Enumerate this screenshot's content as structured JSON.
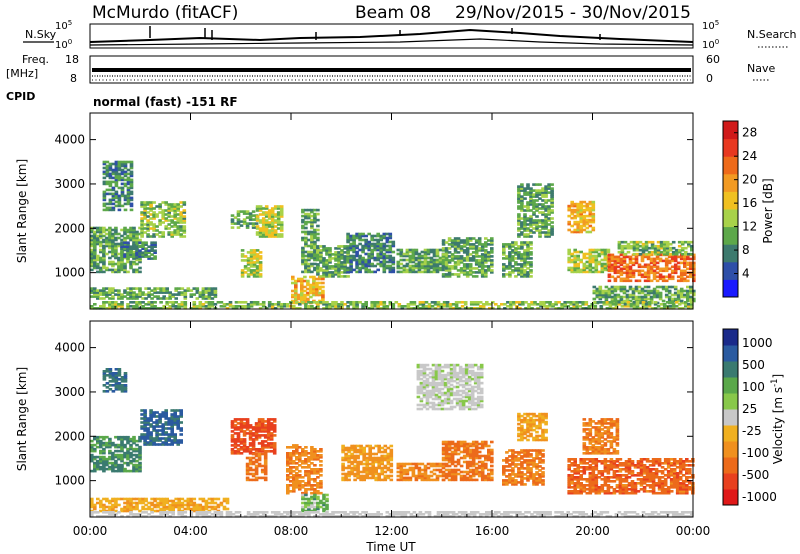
{
  "header": {
    "title": "McMurdo (fitACF)",
    "beam": "Beam 08",
    "dates": "29/Nov/2015 - 30/Nov/2015",
    "mode": "normal (fast) -151 RF"
  },
  "strips": {
    "nsky_label": "N.Sky",
    "nsky_top": "10^5",
    "nsky_bottom": "10^0",
    "nsearch_label": "N.Search",
    "freq_label_1": "Freq.",
    "freq_label_2": "[MHz]",
    "freq_top": "18",
    "freq_bottom": "8",
    "nave_label": "Nave",
    "nave_top": "60",
    "nave_bottom": "0",
    "cpid_label": "CPID"
  },
  "colors": {
    "power": [
      "#1a1aff",
      "#2e4fa8",
      "#3d7a6e",
      "#5da84a",
      "#a8d24a",
      "#f0c020",
      "#f29a22",
      "#ee6a1a",
      "#e83820",
      "#d01a1a"
    ],
    "velocity": [
      "#1a2a8a",
      "#2a5aa0",
      "#3a7a70",
      "#5aa84a",
      "#88c84a",
      "#c8c8c8",
      "#f0b020",
      "#f0901e",
      "#ec6a1a",
      "#e8401e",
      "#e01818"
    ]
  },
  "chart_data": [
    {
      "type": "heatmap",
      "title": "Power",
      "xlabel": "Time UT",
      "ylabel": "Slant Range [km]",
      "xlim": [
        "00:00",
        "00:00"
      ],
      "x_ticks": [
        "00:00",
        "04:00",
        "08:00",
        "12:00",
        "16:00",
        "20:00",
        "00:00"
      ],
      "ylim": [
        180,
        4600
      ],
      "y_ticks": [
        "1000",
        "2000",
        "3000",
        "4000"
      ],
      "colorbar": {
        "label": "Power [dB]",
        "ticks": [
          "4",
          "8",
          "12",
          "16",
          "20",
          "24",
          "28"
        ],
        "range": [
          0,
          30
        ]
      },
      "regions": [
        {
          "t0": 0.0,
          "t1": 2.0,
          "r0": 1000,
          "r1": 2000,
          "value": 10
        },
        {
          "t0": 0.5,
          "t1": 1.6,
          "r0": 2400,
          "r1": 3500,
          "value": 8
        },
        {
          "t0": 1.2,
          "t1": 2.6,
          "r0": 1300,
          "r1": 1700,
          "value": 8
        },
        {
          "t0": 2.0,
          "t1": 3.8,
          "r0": 1800,
          "r1": 2600,
          "value": 12
        },
        {
          "t0": 0.0,
          "t1": 5.0,
          "r0": 400,
          "r1": 650,
          "value": 10
        },
        {
          "t0": 5.6,
          "t1": 6.6,
          "r0": 2000,
          "r1": 2400,
          "value": 10
        },
        {
          "t0": 6.6,
          "t1": 7.6,
          "r0": 1800,
          "r1": 2500,
          "value": 14
        },
        {
          "t0": 6.0,
          "t1": 6.8,
          "r0": 900,
          "r1": 1500,
          "value": 14
        },
        {
          "t0": 8.0,
          "t1": 9.2,
          "r0": 300,
          "r1": 900,
          "value": 18
        },
        {
          "t0": 8.4,
          "t1": 9.0,
          "r0": 1000,
          "r1": 2400,
          "value": 10
        },
        {
          "t0": 9.0,
          "t1": 10.2,
          "r0": 900,
          "r1": 1600,
          "value": 10
        },
        {
          "t0": 10.2,
          "t1": 12.0,
          "r0": 1000,
          "r1": 1900,
          "value": 8
        },
        {
          "t0": 12.2,
          "t1": 14.2,
          "r0": 1000,
          "r1": 1500,
          "value": 10
        },
        {
          "t0": 14.0,
          "t1": 16.0,
          "r0": 900,
          "r1": 1800,
          "value": 10
        },
        {
          "t0": 16.4,
          "t1": 17.6,
          "r0": 900,
          "r1": 1700,
          "value": 10
        },
        {
          "t0": 17.0,
          "t1": 18.4,
          "r0": 1800,
          "r1": 3000,
          "value": 10
        },
        {
          "t0": 19.0,
          "t1": 20.0,
          "r0": 1900,
          "r1": 2600,
          "value": 18
        },
        {
          "t0": 19.0,
          "t1": 20.6,
          "r0": 1000,
          "r1": 1500,
          "value": 14
        },
        {
          "t0": 20.6,
          "t1": 24.0,
          "r0": 800,
          "r1": 1400,
          "value": 22
        },
        {
          "t0": 21.0,
          "t1": 24.0,
          "r0": 1400,
          "r1": 1700,
          "value": 12
        },
        {
          "t0": 20.0,
          "t1": 24.0,
          "r0": 300,
          "r1": 700,
          "value": 10
        },
        {
          "t0": 0.0,
          "t1": 24.0,
          "r0": 180,
          "r1": 320,
          "value": 12
        }
      ]
    },
    {
      "type": "heatmap",
      "title": "Velocity",
      "xlabel": "Time UT",
      "ylabel": "Slant Range [km]",
      "xlim": [
        "00:00",
        "00:00"
      ],
      "x_ticks": [
        "00:00",
        "04:00",
        "08:00",
        "12:00",
        "16:00",
        "20:00",
        "00:00"
      ],
      "ylim": [
        180,
        4600
      ],
      "y_ticks": [
        "1000",
        "2000",
        "3000",
        "4000"
      ],
      "colorbar": {
        "label": "Velocity [m s^-1]",
        "ticks": [
          "1000",
          "500",
          "100",
          "25",
          "-25",
          "-100",
          "-500",
          "-1000"
        ]
      },
      "regions": [
        {
          "t0": 0.0,
          "t1": 2.0,
          "r0": 1200,
          "r1": 2000,
          "value": 120
        },
        {
          "t0": 2.0,
          "t1": 3.6,
          "r0": 1800,
          "r1": 2600,
          "value": 300
        },
        {
          "t0": 0.5,
          "t1": 1.4,
          "r0": 3000,
          "r1": 3500,
          "value": 200
        },
        {
          "t0": 5.6,
          "t1": 7.4,
          "r0": 1600,
          "r1": 2400,
          "value": -600
        },
        {
          "t0": 6.2,
          "t1": 7.0,
          "r0": 1000,
          "r1": 1600,
          "value": -300
        },
        {
          "t0": 7.8,
          "t1": 9.2,
          "r0": 700,
          "r1": 1800,
          "value": -200
        },
        {
          "t0": 8.4,
          "t1": 9.4,
          "r0": 300,
          "r1": 700,
          "value": 60
        },
        {
          "t0": 10.0,
          "t1": 12.0,
          "r0": 1000,
          "r1": 1800,
          "value": -150
        },
        {
          "t0": 12.2,
          "t1": 14.0,
          "r0": 1000,
          "r1": 1400,
          "value": -200
        },
        {
          "t0": 13.0,
          "t1": 15.6,
          "r0": 2600,
          "r1": 3600,
          "value": 10
        },
        {
          "t0": 14.0,
          "t1": 16.0,
          "r0": 1000,
          "r1": 1900,
          "value": -300
        },
        {
          "t0": 16.4,
          "t1": 18.0,
          "r0": 900,
          "r1": 1700,
          "value": -250
        },
        {
          "t0": 17.0,
          "t1": 18.2,
          "r0": 1900,
          "r1": 2500,
          "value": -100
        },
        {
          "t0": 19.0,
          "t1": 24.0,
          "r0": 700,
          "r1": 1500,
          "value": -400
        },
        {
          "t0": 19.6,
          "t1": 21.0,
          "r0": 1600,
          "r1": 2400,
          "value": -250
        },
        {
          "t0": 0.0,
          "t1": 5.5,
          "r0": 300,
          "r1": 600,
          "value": -80
        },
        {
          "t0": 0.0,
          "t1": 24.0,
          "r0": 180,
          "r1": 300,
          "value": 0
        }
      ]
    }
  ]
}
